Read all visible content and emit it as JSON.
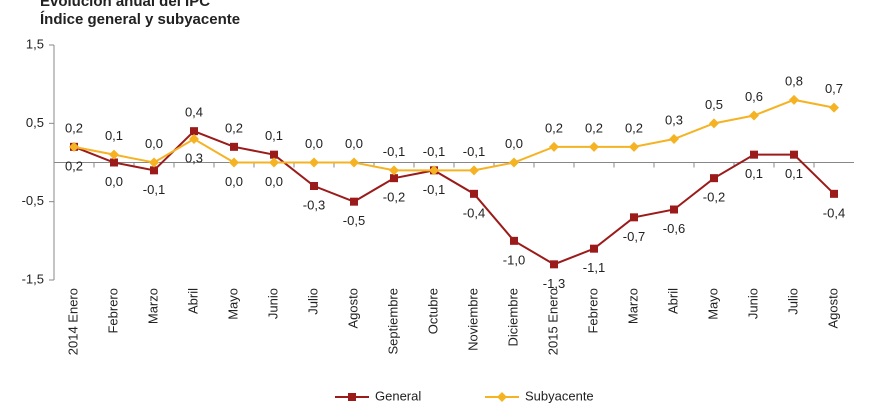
{
  "chart_data": {
    "type": "line",
    "title": "Evolución anual del IPC",
    "subtitle": "Índice general y subyacente",
    "categories": [
      "2014 Enero",
      "Febrero",
      "Marzo",
      "Abril",
      "Mayo",
      "Junio",
      "Julio",
      "Agosto",
      "Septiembre",
      "Octubre",
      "Noviembre",
      "Diciembre",
      "2015 Enero",
      "Febrero",
      "Marzo",
      "Abril",
      "Mayo",
      "Junio",
      "Julio",
      "Agosto"
    ],
    "series": [
      {
        "name": "General",
        "color": "#9b1b1b",
        "marker": "square",
        "values": [
          0.2,
          0.0,
          -0.1,
          0.4,
          0.2,
          0.1,
          -0.3,
          -0.5,
          -0.2,
          -0.1,
          -0.4,
          -1.0,
          -1.3,
          -1.1,
          -0.7,
          -0.6,
          -0.2,
          0.1,
          0.1,
          -0.4
        ],
        "value_labels": [
          "0,2",
          "0,0",
          "-0,1",
          "0,4",
          "0,2",
          "0,1",
          "-0,3",
          "-0,5",
          "-0,2",
          "-0,1",
          "-0,4",
          "-1,0",
          "-1,3",
          "-1,1",
          "-0,7",
          "-0,6",
          "-0,2",
          "0,1",
          "0,1",
          "-0,4"
        ]
      },
      {
        "name": "Subyacente",
        "color": "#f5b324",
        "marker": "diamond",
        "values": [
          0.2,
          0.1,
          0.0,
          0.3,
          0.0,
          0.0,
          0.0,
          0.0,
          -0.1,
          -0.1,
          -0.1,
          0.0,
          0.2,
          0.2,
          0.2,
          0.3,
          0.5,
          0.6,
          0.8,
          0.7
        ],
        "value_labels": [
          "0,2",
          "0,1",
          "0,0",
          "0,3",
          "0,0",
          "0,0",
          "0,0",
          "0,0",
          "-0,1",
          "-0,1",
          "-0,1",
          "0,0",
          "0,2",
          "0,2",
          "0,2",
          "0,3",
          "0,5",
          "0,6",
          "0,8",
          "0,7"
        ]
      }
    ],
    "ylim": [
      -1.5,
      1.5
    ],
    "yticks": [
      {
        "value": -1.5,
        "label": "-1,5"
      },
      {
        "value": -0.5,
        "label": "-0,5"
      },
      {
        "value": 0.5,
        "label": "0,5"
      },
      {
        "value": 1.5,
        "label": "1,5"
      }
    ],
    "legend": "bottom"
  }
}
